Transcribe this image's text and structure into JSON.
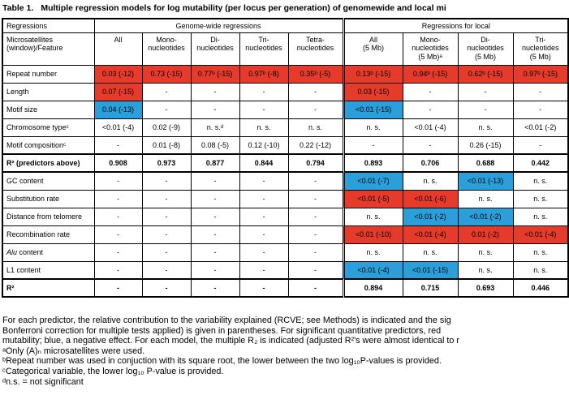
{
  "title": {
    "number": "Table 1.",
    "caption": "Multiple regression models for log mutability (per locus per generation) of genomewide and local mi"
  },
  "colors": {
    "positive_red": "#e63b2a",
    "negative_blue": "#2b9fd9"
  },
  "table": {
    "group_headers": [
      {
        "label": "Regressions",
        "span": 1
      },
      {
        "label": "Genome-wide regressions",
        "span": 5
      },
      {
        "label": "Regressions for local",
        "span": 4
      }
    ],
    "column_headers": [
      "Microsatellites\n(window)/Feature",
      "All",
      "Mono-\nnucleotides",
      "Di-\nnucleotides",
      "Tri-\nnucleotides",
      "Tetra-\nnucleotides",
      "All\n(5 Mb)",
      "Mono-\nnucleotides\n(5 Mb)ᵃ",
      "Di-\nnucleotides\n(5 Mb)",
      "Tri-\nnucleotides\n(5 Mb)"
    ],
    "rows": [
      {
        "label": "Repeat number",
        "cells": [
          {
            "t": "0.03 (-12)",
            "c": "r"
          },
          {
            "t": "0.73 (-15)",
            "c": "r"
          },
          {
            "t": "0.77ᵇ (-15)",
            "c": "r"
          },
          {
            "t": "0.97ᵇ (-8)",
            "c": "r"
          },
          {
            "t": "0.35ᵇ (-5)",
            "c": "r"
          },
          {
            "t": "0.13ᵇ (-15)",
            "c": "r"
          },
          {
            "t": "0.94ᵇ (-15)",
            "c": "r"
          },
          {
            "t": "0.62ᵇ (-15)",
            "c": "r"
          },
          {
            "t": "0.97ᵇ (-15)",
            "c": "r"
          }
        ]
      },
      {
        "label": "Length",
        "cells": [
          {
            "t": "0.07 (-15)",
            "c": "r"
          },
          {
            "t": "-"
          },
          {
            "t": "-"
          },
          {
            "t": "-"
          },
          {
            "t": "-"
          },
          {
            "t": "0.03 (-15)",
            "c": "r"
          },
          {
            "t": "-"
          },
          {
            "t": "-"
          },
          {
            "t": "-"
          }
        ]
      },
      {
        "label": "Motif size",
        "cells": [
          {
            "t": "0.04 (-13)",
            "c": "b"
          },
          {
            "t": "-"
          },
          {
            "t": "-"
          },
          {
            "t": "-"
          },
          {
            "t": "-"
          },
          {
            "t": "<0.01 (-15)",
            "c": "b"
          },
          {
            "t": "-"
          },
          {
            "t": "-"
          },
          {
            "t": "-"
          }
        ]
      },
      {
        "label": "Chromosome typeᶜ",
        "cells": [
          {
            "t": "<0.01 (-4)"
          },
          {
            "t": "0.02 (-9)"
          },
          {
            "t": "n. s.ᵈ"
          },
          {
            "t": "n. s."
          },
          {
            "t": "n. s."
          },
          {
            "t": "n. s."
          },
          {
            "t": "<0.01 (-4)"
          },
          {
            "t": "n. s."
          },
          {
            "t": "<0.01 (-2)"
          }
        ]
      },
      {
        "label": "Motif compositionᶜ",
        "cells": [
          {
            "t": "-"
          },
          {
            "t": "0.01 (-8)"
          },
          {
            "t": "0.08 (-5)"
          },
          {
            "t": "0.12 (-10)"
          },
          {
            "t": "0.22 (-12)"
          },
          {
            "t": "-"
          },
          {
            "t": "-"
          },
          {
            "t": "0.26 (-15)"
          },
          {
            "t": "-"
          }
        ]
      },
      {
        "label": "R² (predictors above)",
        "bold": true,
        "sep": true,
        "cells": [
          {
            "t": "0.908"
          },
          {
            "t": "0.973"
          },
          {
            "t": "0.877"
          },
          {
            "t": "0.844"
          },
          {
            "t": "0.794"
          },
          {
            "t": "0.893"
          },
          {
            "t": "0.706"
          },
          {
            "t": "0.688"
          },
          {
            "t": "0.442"
          }
        ]
      },
      {
        "label": "GC content",
        "sep": true,
        "cells": [
          {
            "t": "-"
          },
          {
            "t": "-"
          },
          {
            "t": "-"
          },
          {
            "t": "-"
          },
          {
            "t": "-"
          },
          {
            "t": "<0.01 (-7)",
            "c": "b"
          },
          {
            "t": "n. s."
          },
          {
            "t": "<0.01 (-13)",
            "c": "b"
          },
          {
            "t": "n. s."
          }
        ]
      },
      {
        "label": "Substitution rate",
        "cells": [
          {
            "t": "-"
          },
          {
            "t": "-"
          },
          {
            "t": "-"
          },
          {
            "t": "-"
          },
          {
            "t": "-"
          },
          {
            "t": "<0.01 (-5)",
            "c": "r"
          },
          {
            "t": "<0.01 (-6)",
            "c": "r"
          },
          {
            "t": "n. s."
          },
          {
            "t": "n. s."
          }
        ]
      },
      {
        "label": "Distance from telomere",
        "cells": [
          {
            "t": "-"
          },
          {
            "t": "-"
          },
          {
            "t": "-"
          },
          {
            "t": "-"
          },
          {
            "t": "-"
          },
          {
            "t": "n. s."
          },
          {
            "t": "<0.01 (-2)",
            "c": "b"
          },
          {
            "t": "<0.01 (-2)",
            "c": "b"
          },
          {
            "t": "n. s."
          }
        ]
      },
      {
        "label": "Recombination rate",
        "cells": [
          {
            "t": "-"
          },
          {
            "t": "-"
          },
          {
            "t": "-"
          },
          {
            "t": "-"
          },
          {
            "t": "-"
          },
          {
            "t": "<0.01 (-10)",
            "c": "r"
          },
          {
            "t": "<0.01 (-4)",
            "c": "r"
          },
          {
            "t": "0.01 (-2)",
            "c": "r"
          },
          {
            "t": "<0.01 (-4)",
            "c": "r"
          }
        ]
      },
      {
        "italic_prefix": "Alu",
        "label": " content",
        "cells": [
          {
            "t": "-"
          },
          {
            "t": "-"
          },
          {
            "t": "-"
          },
          {
            "t": "-"
          },
          {
            "t": "-"
          },
          {
            "t": "n. s."
          },
          {
            "t": "n. s."
          },
          {
            "t": "n. s."
          },
          {
            "t": "n. s."
          }
        ]
      },
      {
        "label": "L1 content",
        "cells": [
          {
            "t": "-"
          },
          {
            "t": "-"
          },
          {
            "t": "-"
          },
          {
            "t": "-"
          },
          {
            "t": "-"
          },
          {
            "t": "<0.01 (-4)",
            "c": "b"
          },
          {
            "t": "<0.01 (-15)",
            "c": "b"
          },
          {
            "t": "n. s."
          },
          {
            "t": "n. s."
          }
        ]
      },
      {
        "label": "R²",
        "bold": true,
        "sep": true,
        "cells": [
          {
            "t": "-"
          },
          {
            "t": "-"
          },
          {
            "t": "-"
          },
          {
            "t": "-"
          },
          {
            "t": "-"
          },
          {
            "t": "0.894"
          },
          {
            "t": "0.715"
          },
          {
            "t": "0.693"
          },
          {
            "t": "0.446"
          }
        ]
      }
    ]
  },
  "footnotes": [
    "For each predictor, the relative contribution to the variability explained (RCVE; see Methods) is indicated and the sig",
    "Bonferroni correction for multiple tests applied) is given in parentheses. For significant quantitative predictors, red",
    "mutability; blue, a negative effect. For each model, the multiple R₂ is indicated (adjusted R²'s were almost identical to r",
    "ᵃOnly (A)ₙ microsatellites were used.",
    "ᵇRepeat number was used in conjuction with its square root, the lower between the two log₁₀P-values is provided.",
    "ᶜCategorical variable, the lower log₁₀ P-value is provided.",
    "ᵈn.s. = not significant"
  ]
}
